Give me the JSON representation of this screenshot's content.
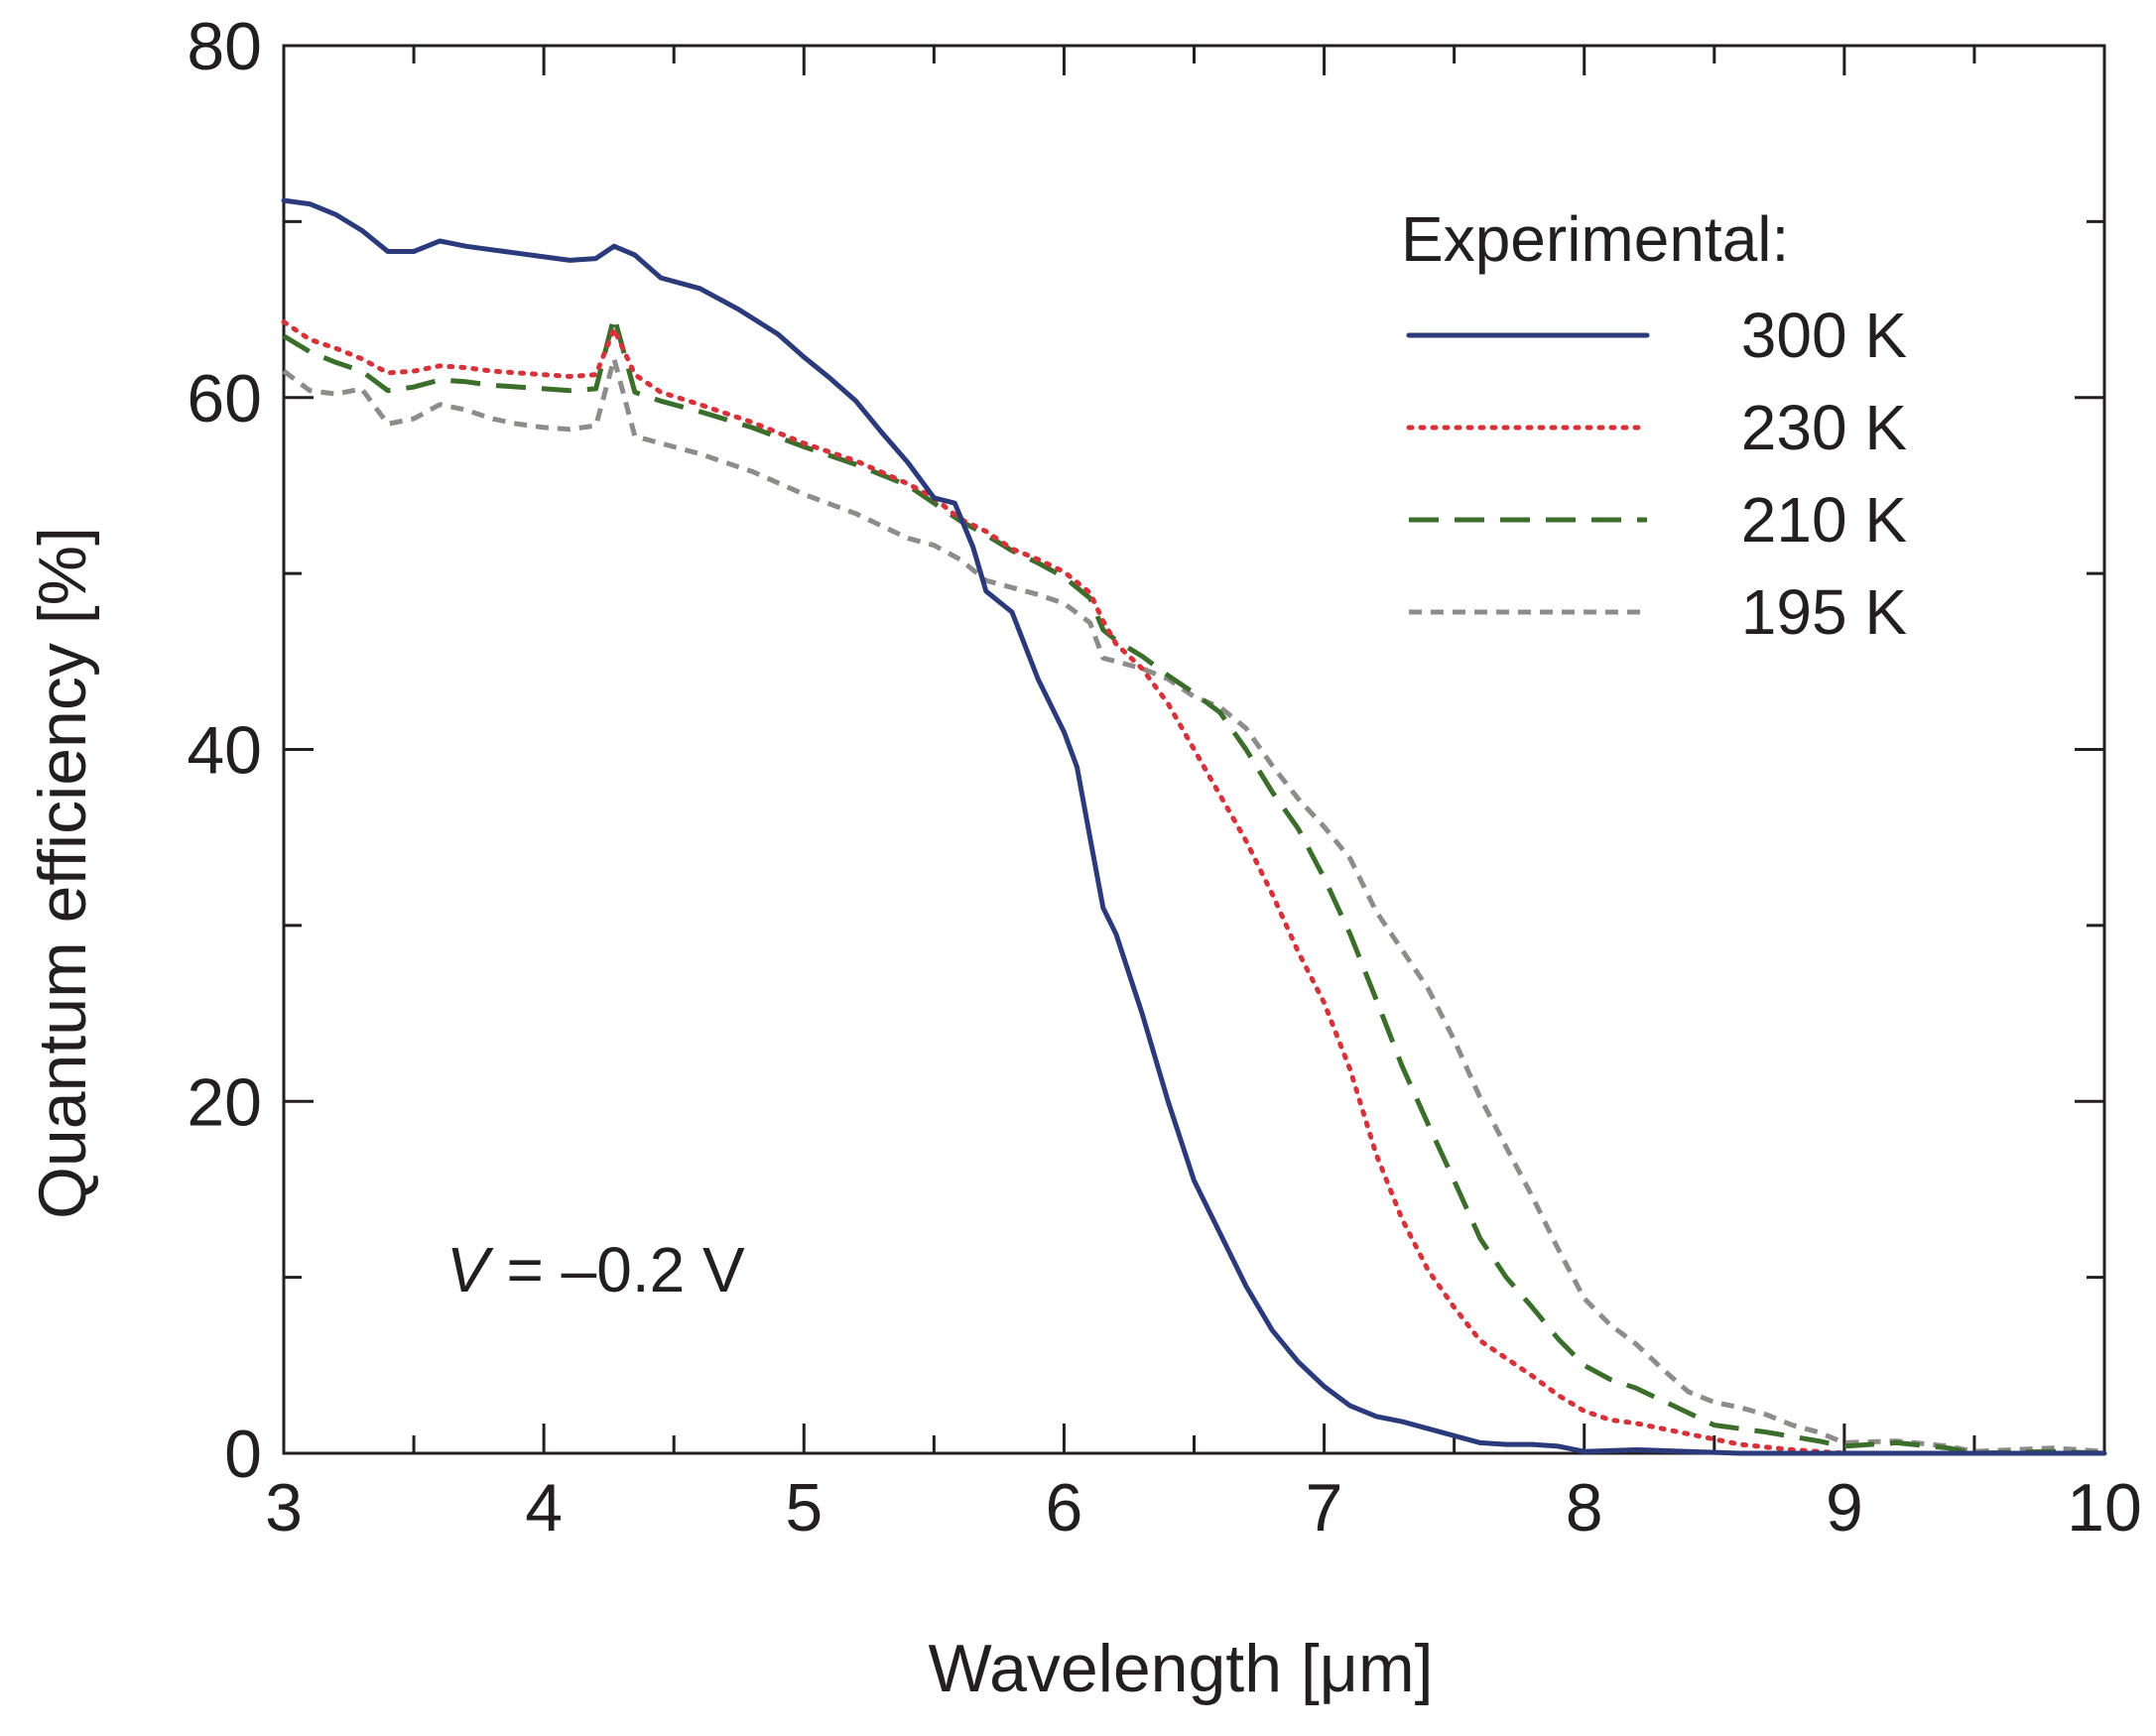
{
  "chart_data": {
    "type": "line",
    "title": "",
    "xlabel": "Wavelength [μm]",
    "ylabel": "Quantum efficiency [%]",
    "xlim": [
      3,
      10
    ],
    "ylim": [
      0,
      80
    ],
    "x_ticks": [
      3,
      4,
      5,
      6,
      7,
      8,
      9,
      10
    ],
    "y_ticks": [
      0,
      20,
      40,
      60,
      80
    ],
    "grid": false,
    "legend": {
      "title": "Experimental:",
      "position": "top-right"
    },
    "annotation": {
      "var": "V",
      "rest": " = –0.2 V",
      "position": "bottom-left"
    },
    "series": [
      {
        "name": "300 K",
        "color": "#2b3a7a",
        "style": "solid",
        "points": [
          [
            3.0,
            71.2
          ],
          [
            3.1,
            71.0
          ],
          [
            3.2,
            70.4
          ],
          [
            3.3,
            69.5
          ],
          [
            3.4,
            68.3
          ],
          [
            3.5,
            68.3
          ],
          [
            3.6,
            68.9
          ],
          [
            3.7,
            68.6
          ],
          [
            3.8,
            68.4
          ],
          [
            3.9,
            68.2
          ],
          [
            4.0,
            68.0
          ],
          [
            4.1,
            67.8
          ],
          [
            4.2,
            67.9
          ],
          [
            4.27,
            68.6
          ],
          [
            4.35,
            68.1
          ],
          [
            4.45,
            66.8
          ],
          [
            4.6,
            66.2
          ],
          [
            4.75,
            65.0
          ],
          [
            4.9,
            63.6
          ],
          [
            5.0,
            62.3
          ],
          [
            5.1,
            61.1
          ],
          [
            5.2,
            59.8
          ],
          [
            5.3,
            58.0
          ],
          [
            5.4,
            56.3
          ],
          [
            5.5,
            54.3
          ],
          [
            5.58,
            54.0
          ],
          [
            5.65,
            51.5
          ],
          [
            5.7,
            49.0
          ],
          [
            5.8,
            47.8
          ],
          [
            5.9,
            44.0
          ],
          [
            6.0,
            41.0
          ],
          [
            6.05,
            39.0
          ],
          [
            6.1,
            35.0
          ],
          [
            6.15,
            31.0
          ],
          [
            6.2,
            29.5
          ],
          [
            6.3,
            25.0
          ],
          [
            6.4,
            20.0
          ],
          [
            6.5,
            15.5
          ],
          [
            6.6,
            12.5
          ],
          [
            6.7,
            9.5
          ],
          [
            6.8,
            7.0
          ],
          [
            6.9,
            5.2
          ],
          [
            7.0,
            3.8
          ],
          [
            7.1,
            2.7
          ],
          [
            7.2,
            2.1
          ],
          [
            7.3,
            1.8
          ],
          [
            7.4,
            1.4
          ],
          [
            7.5,
            1.0
          ],
          [
            7.6,
            0.6
          ],
          [
            7.7,
            0.5
          ],
          [
            7.8,
            0.5
          ],
          [
            7.9,
            0.4
          ],
          [
            8.0,
            0.1
          ],
          [
            8.2,
            0.2
          ],
          [
            8.4,
            0.1
          ],
          [
            8.6,
            0.0
          ],
          [
            9.0,
            0.0
          ],
          [
            9.5,
            0.0
          ],
          [
            10.0,
            0.0
          ]
        ]
      },
      {
        "name": "230 K",
        "color": "#d6323a",
        "style": "dotted",
        "points": [
          [
            3.0,
            64.3
          ],
          [
            3.1,
            63.3
          ],
          [
            3.2,
            62.8
          ],
          [
            3.3,
            62.2
          ],
          [
            3.4,
            61.4
          ],
          [
            3.5,
            61.5
          ],
          [
            3.6,
            61.8
          ],
          [
            3.7,
            61.7
          ],
          [
            3.8,
            61.5
          ],
          [
            3.9,
            61.4
          ],
          [
            4.0,
            61.3
          ],
          [
            4.1,
            61.2
          ],
          [
            4.2,
            61.3
          ],
          [
            4.27,
            63.9
          ],
          [
            4.35,
            61.3
          ],
          [
            4.45,
            60.3
          ],
          [
            4.6,
            59.6
          ],
          [
            4.8,
            58.6
          ],
          [
            5.0,
            57.4
          ],
          [
            5.2,
            56.4
          ],
          [
            5.4,
            55.1
          ],
          [
            5.5,
            54.3
          ],
          [
            5.6,
            53.1
          ],
          [
            5.7,
            52.4
          ],
          [
            5.8,
            51.4
          ],
          [
            5.9,
            50.8
          ],
          [
            6.0,
            50.1
          ],
          [
            6.1,
            48.9
          ],
          [
            6.15,
            47.3
          ],
          [
            6.2,
            46.0
          ],
          [
            6.3,
            44.6
          ],
          [
            6.4,
            42.6
          ],
          [
            6.5,
            40.0
          ],
          [
            6.6,
            37.4
          ],
          [
            6.7,
            34.8
          ],
          [
            6.8,
            31.8
          ],
          [
            6.9,
            28.5
          ],
          [
            7.0,
            25.6
          ],
          [
            7.1,
            21.8
          ],
          [
            7.2,
            17.0
          ],
          [
            7.3,
            13.3
          ],
          [
            7.4,
            10.4
          ],
          [
            7.5,
            8.3
          ],
          [
            7.6,
            6.4
          ],
          [
            7.7,
            5.4
          ],
          [
            7.8,
            4.4
          ],
          [
            7.9,
            3.3
          ],
          [
            8.0,
            2.4
          ],
          [
            8.1,
            1.9
          ],
          [
            8.2,
            1.7
          ],
          [
            8.4,
            1.1
          ],
          [
            8.6,
            0.5
          ],
          [
            8.8,
            0.2
          ],
          [
            9.0,
            0.0
          ],
          [
            9.5,
            0.0
          ],
          [
            10.0,
            0.0
          ]
        ]
      },
      {
        "name": "210 K",
        "color": "#3b6e2b",
        "style": "dashed",
        "points": [
          [
            3.0,
            63.5
          ],
          [
            3.1,
            62.6
          ],
          [
            3.2,
            62.0
          ],
          [
            3.3,
            61.5
          ],
          [
            3.4,
            60.4
          ],
          [
            3.5,
            60.6
          ],
          [
            3.6,
            61.0
          ],
          [
            3.7,
            60.9
          ],
          [
            3.8,
            60.7
          ],
          [
            3.9,
            60.6
          ],
          [
            4.0,
            60.5
          ],
          [
            4.1,
            60.4
          ],
          [
            4.2,
            60.5
          ],
          [
            4.27,
            64.6
          ],
          [
            4.35,
            60.3
          ],
          [
            4.45,
            59.8
          ],
          [
            4.6,
            59.2
          ],
          [
            4.8,
            58.3
          ],
          [
            5.0,
            57.2
          ],
          [
            5.2,
            56.2
          ],
          [
            5.4,
            55.0
          ],
          [
            5.5,
            54.0
          ],
          [
            5.6,
            53.0
          ],
          [
            5.7,
            52.2
          ],
          [
            5.8,
            51.3
          ],
          [
            5.9,
            50.6
          ],
          [
            6.0,
            49.8
          ],
          [
            6.1,
            48.6
          ],
          [
            6.15,
            46.8
          ],
          [
            6.2,
            46.2
          ],
          [
            6.3,
            45.3
          ],
          [
            6.4,
            44.2
          ],
          [
            6.5,
            43.2
          ],
          [
            6.6,
            42.1
          ],
          [
            6.7,
            40.0
          ],
          [
            6.8,
            37.6
          ],
          [
            6.9,
            35.5
          ],
          [
            7.0,
            32.7
          ],
          [
            7.1,
            29.5
          ],
          [
            7.2,
            25.8
          ],
          [
            7.3,
            22.0
          ],
          [
            7.4,
            18.7
          ],
          [
            7.5,
            15.5
          ],
          [
            7.6,
            12.2
          ],
          [
            7.7,
            10.0
          ],
          [
            7.8,
            8.3
          ],
          [
            7.9,
            6.5
          ],
          [
            8.0,
            5.0
          ],
          [
            8.1,
            4.2
          ],
          [
            8.2,
            3.7
          ],
          [
            8.4,
            2.3
          ],
          [
            8.5,
            1.6
          ],
          [
            8.7,
            1.2
          ],
          [
            8.9,
            0.7
          ],
          [
            9.0,
            0.4
          ],
          [
            9.2,
            0.6
          ],
          [
            9.4,
            0.3
          ],
          [
            9.5,
            0.0
          ],
          [
            9.8,
            0.1
          ],
          [
            10.0,
            0.0
          ]
        ]
      },
      {
        "name": "195 K",
        "color": "#8e8c8a",
        "style": "short-dashed",
        "points": [
          [
            3.0,
            61.5
          ],
          [
            3.1,
            60.4
          ],
          [
            3.2,
            60.2
          ],
          [
            3.3,
            60.5
          ],
          [
            3.4,
            58.5
          ],
          [
            3.5,
            58.8
          ],
          [
            3.6,
            59.6
          ],
          [
            3.7,
            59.3
          ],
          [
            3.8,
            58.8
          ],
          [
            3.9,
            58.5
          ],
          [
            4.0,
            58.3
          ],
          [
            4.1,
            58.2
          ],
          [
            4.2,
            58.4
          ],
          [
            4.27,
            62.2
          ],
          [
            4.35,
            57.8
          ],
          [
            4.45,
            57.4
          ],
          [
            4.6,
            56.8
          ],
          [
            4.8,
            55.8
          ],
          [
            5.0,
            54.5
          ],
          [
            5.2,
            53.4
          ],
          [
            5.4,
            52.0
          ],
          [
            5.5,
            51.6
          ],
          [
            5.6,
            50.8
          ],
          [
            5.7,
            49.6
          ],
          [
            5.8,
            49.2
          ],
          [
            5.9,
            48.8
          ],
          [
            6.0,
            48.3
          ],
          [
            6.1,
            47.2
          ],
          [
            6.15,
            45.2
          ],
          [
            6.2,
            45.0
          ],
          [
            6.3,
            44.6
          ],
          [
            6.4,
            44.0
          ],
          [
            6.5,
            43.0
          ],
          [
            6.6,
            42.4
          ],
          [
            6.7,
            41.2
          ],
          [
            6.8,
            39.1
          ],
          [
            6.9,
            37.2
          ],
          [
            7.0,
            35.6
          ],
          [
            7.1,
            33.8
          ],
          [
            7.2,
            30.8
          ],
          [
            7.3,
            28.6
          ],
          [
            7.4,
            26.4
          ],
          [
            7.5,
            23.5
          ],
          [
            7.6,
            20.2
          ],
          [
            7.7,
            17.4
          ],
          [
            7.8,
            14.6
          ],
          [
            7.9,
            11.6
          ],
          [
            8.0,
            8.8
          ],
          [
            8.1,
            7.3
          ],
          [
            8.2,
            6.2
          ],
          [
            8.3,
            4.8
          ],
          [
            8.4,
            3.5
          ],
          [
            8.5,
            2.9
          ],
          [
            8.6,
            2.6
          ],
          [
            8.7,
            2.2
          ],
          [
            8.8,
            1.6
          ],
          [
            8.9,
            1.2
          ],
          [
            9.0,
            0.6
          ],
          [
            9.2,
            0.7
          ],
          [
            9.4,
            0.4
          ],
          [
            9.5,
            0.1
          ],
          [
            9.8,
            0.3
          ],
          [
            10.0,
            0.1
          ]
        ]
      }
    ]
  }
}
